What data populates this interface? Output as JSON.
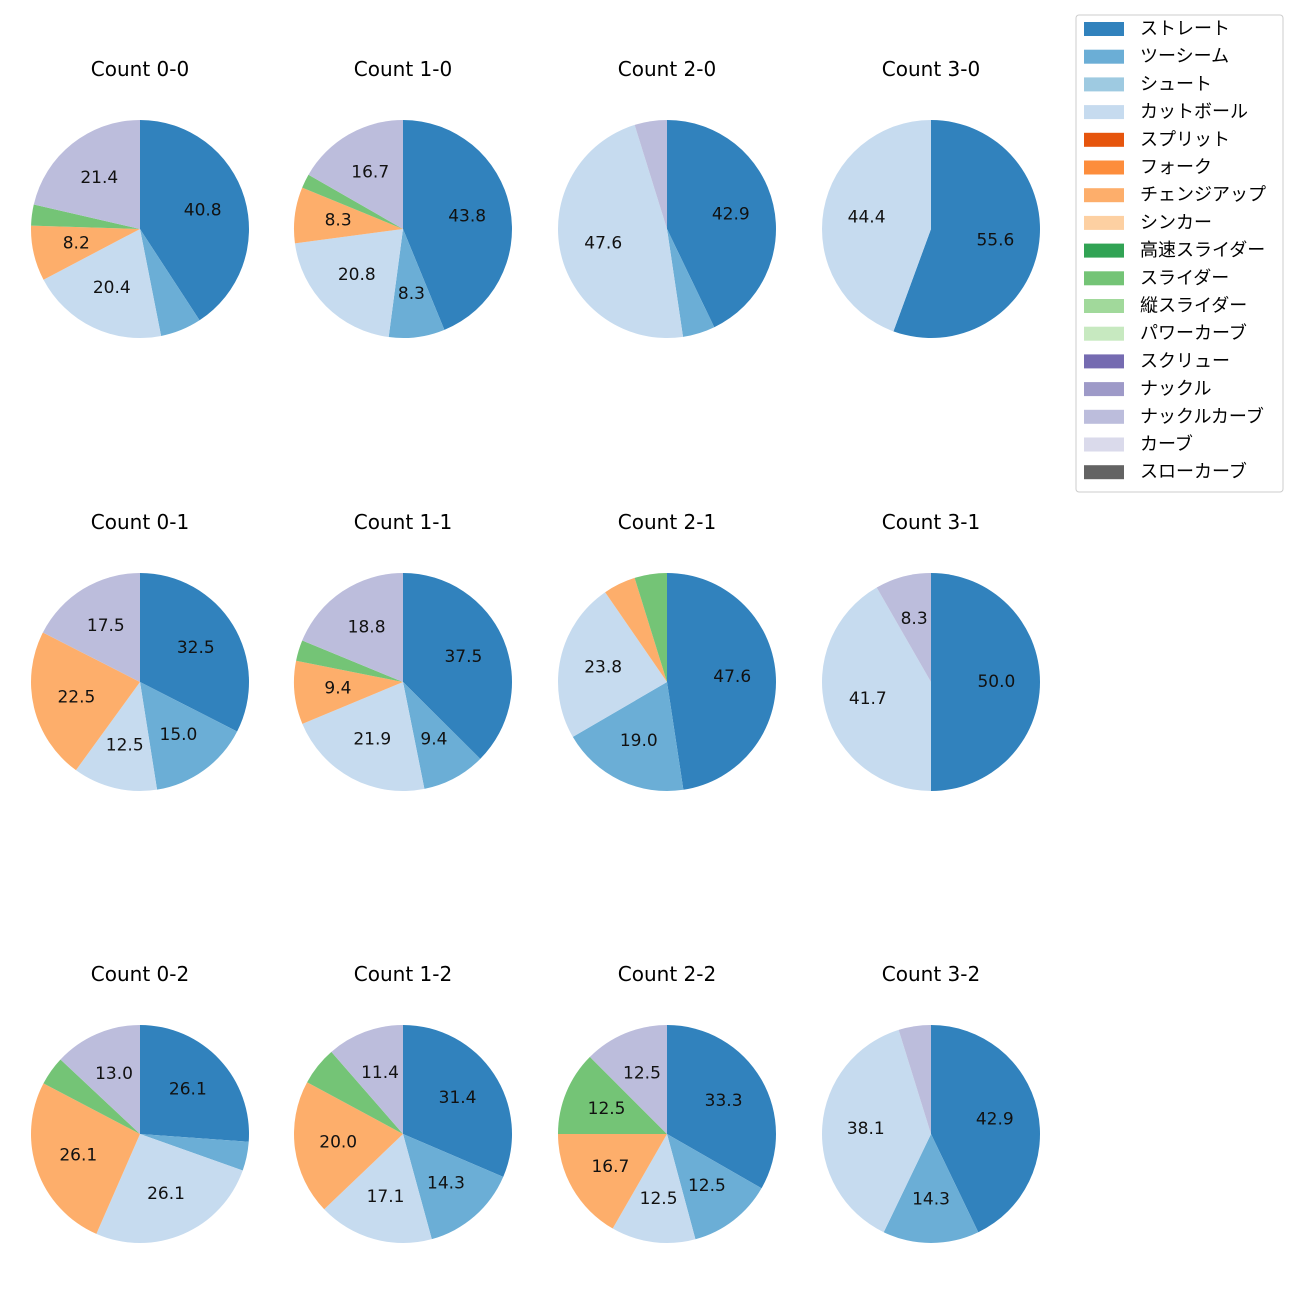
{
  "chart_data": {
    "type": "pie",
    "pitch_types": [
      {
        "name": "ストレート",
        "color": "#3182bd"
      },
      {
        "name": "ツーシーム",
        "color": "#6baed6"
      },
      {
        "name": "シュート",
        "color": "#9ecae1"
      },
      {
        "name": "カットボール",
        "color": "#c6dbef"
      },
      {
        "name": "スプリット",
        "color": "#e6550d"
      },
      {
        "name": "フォーク",
        "color": "#fd8d3c"
      },
      {
        "name": "チェンジアップ",
        "color": "#fdae6b"
      },
      {
        "name": "シンカー",
        "color": "#fdd0a2"
      },
      {
        "name": "高速スライダー",
        "color": "#31a354"
      },
      {
        "name": "スライダー",
        "color": "#74c476"
      },
      {
        "name": "縦スライダー",
        "color": "#a1d99b"
      },
      {
        "name": "パワーカーブ",
        "color": "#c7e9c0"
      },
      {
        "name": "スクリュー",
        "color": "#756bb1"
      },
      {
        "name": "ナックル",
        "color": "#9e9ac8"
      },
      {
        "name": "ナックルカーブ",
        "color": "#bcbddc"
      },
      {
        "name": "カーブ",
        "color": "#dadaeb"
      },
      {
        "name": "スローカーブ",
        "color": "#636363"
      }
    ],
    "label_threshold": 7,
    "panels": [
      {
        "title": "Count 0-0",
        "slices": [
          {
            "pitch": "ストレート",
            "value": 40.8
          },
          {
            "pitch": "ツーシーム",
            "value": 6.1
          },
          {
            "pitch": "カットボール",
            "value": 20.4
          },
          {
            "pitch": "チェンジアップ",
            "value": 8.2
          },
          {
            "pitch": "スライダー",
            "value": 3.1
          },
          {
            "pitch": "ナックルカーブ",
            "value": 21.4
          }
        ]
      },
      {
        "title": "Count 1-0",
        "slices": [
          {
            "pitch": "ストレート",
            "value": 43.8
          },
          {
            "pitch": "ツーシーム",
            "value": 8.3
          },
          {
            "pitch": "カットボール",
            "value": 20.8
          },
          {
            "pitch": "チェンジアップ",
            "value": 8.3
          },
          {
            "pitch": "スライダー",
            "value": 2.1
          },
          {
            "pitch": "ナックルカーブ",
            "value": 16.7
          }
        ]
      },
      {
        "title": "Count 2-0",
        "slices": [
          {
            "pitch": "ストレート",
            "value": 42.9
          },
          {
            "pitch": "ツーシーム",
            "value": 4.8
          },
          {
            "pitch": "カットボール",
            "value": 47.6
          },
          {
            "pitch": "ナックルカーブ",
            "value": 4.8
          }
        ]
      },
      {
        "title": "Count 3-0",
        "slices": [
          {
            "pitch": "ストレート",
            "value": 55.6
          },
          {
            "pitch": "カットボール",
            "value": 44.4
          }
        ]
      },
      {
        "title": "Count 0-1",
        "slices": [
          {
            "pitch": "ストレート",
            "value": 32.5
          },
          {
            "pitch": "ツーシーム",
            "value": 15.0
          },
          {
            "pitch": "カットボール",
            "value": 12.5
          },
          {
            "pitch": "チェンジアップ",
            "value": 22.5
          },
          {
            "pitch": "ナックルカーブ",
            "value": 17.5
          }
        ]
      },
      {
        "title": "Count 1-1",
        "slices": [
          {
            "pitch": "ストレート",
            "value": 37.5
          },
          {
            "pitch": "ツーシーム",
            "value": 9.4
          },
          {
            "pitch": "カットボール",
            "value": 21.9
          },
          {
            "pitch": "チェンジアップ",
            "value": 9.4
          },
          {
            "pitch": "スライダー",
            "value": 3.1
          },
          {
            "pitch": "ナックルカーブ",
            "value": 18.8
          }
        ]
      },
      {
        "title": "Count 2-1",
        "slices": [
          {
            "pitch": "ストレート",
            "value": 47.6
          },
          {
            "pitch": "ツーシーム",
            "value": 19.0
          },
          {
            "pitch": "カットボール",
            "value": 23.8
          },
          {
            "pitch": "チェンジアップ",
            "value": 4.8
          },
          {
            "pitch": "スライダー",
            "value": 4.8
          }
        ]
      },
      {
        "title": "Count 3-1",
        "slices": [
          {
            "pitch": "ストレート",
            "value": 50.0
          },
          {
            "pitch": "カットボール",
            "value": 41.7
          },
          {
            "pitch": "ナックルカーブ",
            "value": 8.3
          }
        ]
      },
      {
        "title": "Count 0-2",
        "slices": [
          {
            "pitch": "ストレート",
            "value": 26.1
          },
          {
            "pitch": "ツーシーム",
            "value": 4.3
          },
          {
            "pitch": "カットボール",
            "value": 26.1
          },
          {
            "pitch": "チェンジアップ",
            "value": 26.1
          },
          {
            "pitch": "スライダー",
            "value": 4.3
          },
          {
            "pitch": "ナックルカーブ",
            "value": 13.0
          }
        ]
      },
      {
        "title": "Count 1-2",
        "slices": [
          {
            "pitch": "ストレート",
            "value": 31.4
          },
          {
            "pitch": "ツーシーム",
            "value": 14.3
          },
          {
            "pitch": "カットボール",
            "value": 17.1
          },
          {
            "pitch": "チェンジアップ",
            "value": 20.0
          },
          {
            "pitch": "スライダー",
            "value": 5.7
          },
          {
            "pitch": "ナックルカーブ",
            "value": 11.4
          }
        ]
      },
      {
        "title": "Count 2-2",
        "slices": [
          {
            "pitch": "ストレート",
            "value": 33.3
          },
          {
            "pitch": "ツーシーム",
            "value": 12.5
          },
          {
            "pitch": "カットボール",
            "value": 12.5
          },
          {
            "pitch": "チェンジアップ",
            "value": 16.7
          },
          {
            "pitch": "スライダー",
            "value": 12.5
          },
          {
            "pitch": "ナックルカーブ",
            "value": 12.5
          }
        ]
      },
      {
        "title": "Count 3-2",
        "slices": [
          {
            "pitch": "ストレート",
            "value": 42.9
          },
          {
            "pitch": "ツーシーム",
            "value": 14.3
          },
          {
            "pitch": "カットボール",
            "value": 38.1
          },
          {
            "pitch": "ナックルカーブ",
            "value": 4.8
          }
        ]
      }
    ]
  }
}
